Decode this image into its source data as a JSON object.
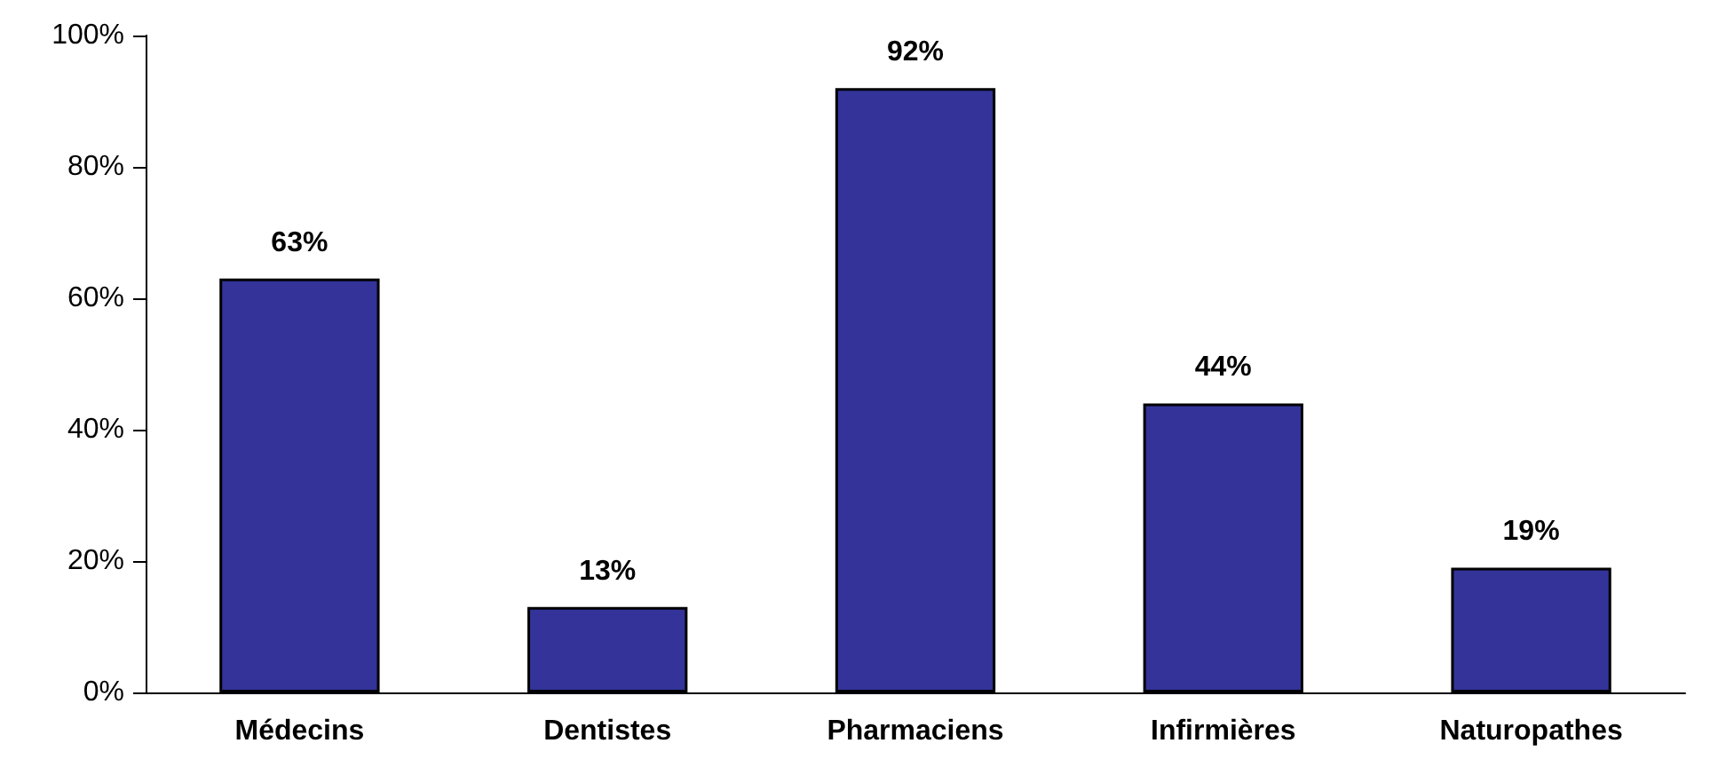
{
  "chart_data": {
    "type": "bar",
    "categories": [
      "Médecins",
      "Dentistes",
      "Pharmaciens",
      "Infirmières",
      "Naturopathes"
    ],
    "values": [
      63,
      13,
      92,
      44,
      19
    ],
    "value_labels": [
      "63%",
      "13%",
      "92%",
      "44%",
      "19%"
    ],
    "color": "#333399",
    "ylim": [
      0,
      100
    ],
    "yticks": [
      {
        "value": 0,
        "label": "0%"
      },
      {
        "value": 20,
        "label": "20%"
      },
      {
        "value": 40,
        "label": "40%"
      },
      {
        "value": 60,
        "label": "60%"
      },
      {
        "value": 80,
        "label": "80%"
      },
      {
        "value": 100,
        "label": "100%"
      }
    ],
    "grid": false
  }
}
